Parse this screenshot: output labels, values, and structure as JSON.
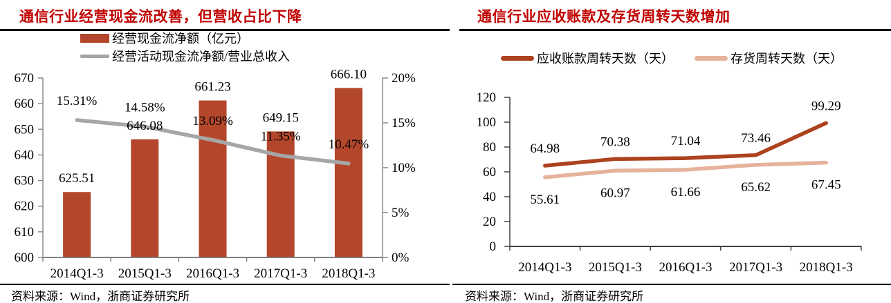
{
  "page": {
    "background": "#ffffff",
    "title_color": "#c00000"
  },
  "left_panel": {
    "title": "通信行业经营现金流改善，但营收占比下降",
    "legend": [
      {
        "label": "经营现金流净额（亿元）",
        "swatch": "bar",
        "color": "#b3462b"
      },
      {
        "label": "经营活动现金流净额/营业总收入",
        "swatch": "line",
        "color": "#a6a6a6"
      }
    ],
    "source": "资料来源：Wind，浙商证券研究所"
  },
  "right_panel": {
    "title": "通信行业应收账款及存货周转天数增加",
    "legend": [
      {
        "label": "应收账款周转天数（天）",
        "swatch": "pill",
        "color": "#ad421f"
      },
      {
        "label": "存货周转天数（天）",
        "swatch": "pill",
        "color": "#e6b29c"
      }
    ],
    "source": "资料来源：Wind，浙商证券研究所"
  },
  "chart_data": [
    {
      "type": "bar",
      "subtype": "bar-line-combo",
      "title": "通信行业经营现金流改善，但营收占比下降",
      "categories": [
        "2014Q1-3",
        "2015Q1-3",
        "2016Q1-3",
        "2017Q1-3",
        "2018Q1-3"
      ],
      "series": [
        {
          "name": "经营现金流净额（亿元）",
          "chart": "bar",
          "axis": "left",
          "color": "#b3462b",
          "values": [
            625.51,
            646.08,
            661.23,
            649.15,
            666.1
          ],
          "labels": [
            "625.51",
            "646.08",
            "661.23",
            "649.15",
            "666.10"
          ]
        },
        {
          "name": "经营活动现金流净额/营业总收入",
          "chart": "line",
          "axis": "right",
          "color": "#a6a6a6",
          "values": [
            15.31,
            14.58,
            13.09,
            11.35,
            10.47
          ],
          "labels": [
            "15.31%",
            "14.58%",
            "13.09%",
            "11.35%",
            "10.47%"
          ]
        }
      ],
      "left_axis": {
        "min": 600,
        "max": 670,
        "step": 10,
        "ticks": [
          "600",
          "610",
          "620",
          "630",
          "640",
          "650",
          "660",
          "670"
        ]
      },
      "right_axis": {
        "min": 0,
        "max": 20,
        "step": 5,
        "ticks": [
          "0%",
          "5%",
          "10%",
          "15%",
          "20%"
        ]
      },
      "grid": false,
      "legend_position": "top"
    },
    {
      "type": "line",
      "title": "通信行业应收账款及存货周转天数增加",
      "categories": [
        "2014Q1-3",
        "2015Q1-3",
        "2016Q1-3",
        "2017Q1-3",
        "2018Q1-3"
      ],
      "series": [
        {
          "name": "应收账款周转天数（天）",
          "color": "#ad421f",
          "label_side": "above",
          "values": [
            64.98,
            70.38,
            71.04,
            73.46,
            99.29
          ],
          "labels": [
            "64.98",
            "70.38",
            "71.04",
            "73.46",
            "99.29"
          ]
        },
        {
          "name": "存货周转天数（天）",
          "color": "#e6b29c",
          "label_side": "below",
          "values": [
            55.61,
            60.97,
            61.66,
            65.62,
            67.45
          ],
          "labels": [
            "55.61",
            "60.97",
            "61.66",
            "65.62",
            "67.45"
          ]
        }
      ],
      "y_axis": {
        "min": 0,
        "max": 120,
        "step": 20,
        "ticks": [
          "0",
          "20",
          "40",
          "60",
          "80",
          "100",
          "120"
        ]
      },
      "grid": false,
      "legend_position": "top"
    }
  ]
}
